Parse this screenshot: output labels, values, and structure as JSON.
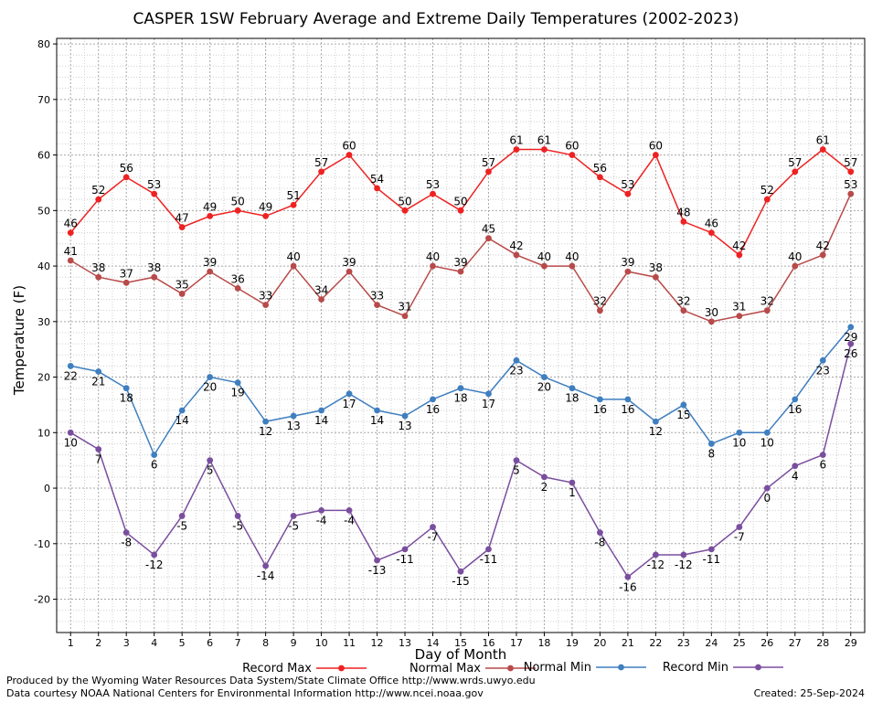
{
  "chart_data": {
    "type": "line",
    "title": "CASPER 1SW February Average and Extreme Daily Temperatures (2002-2023)",
    "xlabel": "Day of Month",
    "ylabel": "Temperature (F)",
    "ylim": [
      -26,
      81
    ],
    "yticks": [
      -20,
      -10,
      0,
      10,
      20,
      30,
      40,
      50,
      60,
      70,
      80
    ],
    "xlim": [
      0.5,
      29.5
    ],
    "x": [
      1,
      2,
      3,
      4,
      5,
      6,
      7,
      8,
      9,
      10,
      11,
      12,
      13,
      14,
      15,
      16,
      17,
      18,
      19,
      20,
      21,
      22,
      23,
      24,
      25,
      26,
      27,
      28,
      29
    ],
    "grid": true,
    "legend_placement": "bottom",
    "series": [
      {
        "name": "Record Max",
        "color": "#ee2222",
        "values": [
          46,
          52,
          56,
          53,
          47,
          49,
          50,
          49,
          51,
          57,
          60,
          54,
          50,
          53,
          50,
          57,
          61,
          61,
          60,
          56,
          53,
          60,
          48,
          46,
          42,
          52,
          57,
          61,
          57
        ]
      },
      {
        "name": "Normal Max",
        "color": "#b84a4a",
        "values": [
          41,
          38,
          37,
          38,
          35,
          39,
          36,
          33,
          40,
          34,
          39,
          33,
          31,
          40,
          39,
          45,
          42,
          40,
          40,
          32,
          39,
          38,
          32,
          30,
          31,
          32,
          40,
          42,
          53
        ]
      },
      {
        "name": "Normal Min",
        "color": "#3f7fbf",
        "values": [
          22,
          21,
          18,
          6,
          14,
          20,
          19,
          12,
          13,
          14,
          17,
          14,
          13,
          16,
          18,
          17,
          23,
          20,
          18,
          16,
          16,
          12,
          15,
          8,
          10,
          10,
          16,
          23,
          29
        ]
      },
      {
        "name": "Record Min",
        "color": "#7a4e9e",
        "values": [
          10,
          7,
          -8,
          -12,
          -5,
          5,
          -5,
          -14,
          -5,
          -4,
          -4,
          -13,
          -11,
          -7,
          -15,
          -11,
          5,
          2,
          1,
          -8,
          -16,
          -12,
          -12,
          -11,
          -7,
          0,
          4,
          6,
          26
        ]
      }
    ]
  },
  "footer": {
    "credit_line1": "Produced by the Wyoming Water Resources Data System/State Climate Office http://www.wrds.uwyo.edu",
    "credit_line2": "Data courtesy NOAA National Centers for Environmental Information http://www.ncei.noaa.gov",
    "created": "Created:  25-Sep-2024"
  }
}
